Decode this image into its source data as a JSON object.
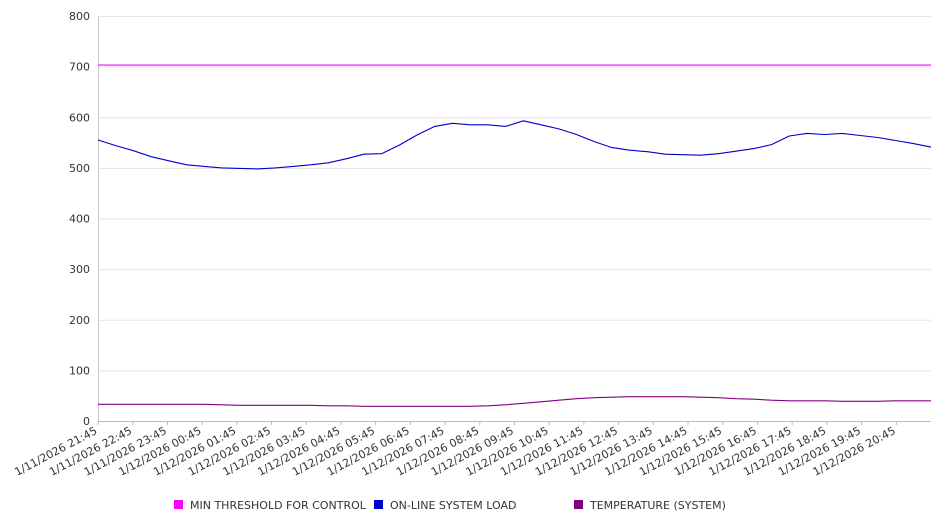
{
  "chart_data": {
    "type": "line",
    "title": "",
    "xlabel": "",
    "ylabel": "",
    "ylim": [
      0,
      800
    ],
    "y_ticks": [
      0,
      100,
      200,
      300,
      400,
      500,
      600,
      700,
      800
    ],
    "grid": true,
    "legend_position": "bottom",
    "x_tick_labels": [
      "1/11/2026 21:45",
      "1/11/2026 22:45",
      "1/11/2026 23:45",
      "1/12/2026 00:45",
      "1/12/2026 01:45",
      "1/12/2026 02:45",
      "1/12/2026 03:45",
      "1/12/2026 04:45",
      "1/12/2026 05:45",
      "1/12/2026 06:45",
      "1/12/2026 07:45",
      "1/12/2026 08:45",
      "1/12/2026 09:45",
      "1/12/2026 10:45",
      "1/12/2026 11:45",
      "1/12/2026 12:45",
      "1/12/2026 13:45",
      "1/12/2026 14:45",
      "1/12/2026 15:45",
      "1/12/2026 16:45",
      "1/12/2026 17:45",
      "1/12/2026 18:45",
      "1/12/2026 19:45",
      "1/12/2026 20:45"
    ],
    "x": [
      "1/11/2026 21:45",
      "1/11/2026 22:15",
      "1/11/2026 22:45",
      "1/11/2026 23:15",
      "1/11/2026 23:45",
      "1/12/2026 00:15",
      "1/12/2026 00:45",
      "1/12/2026 01:15",
      "1/12/2026 01:45",
      "1/12/2026 02:15",
      "1/12/2026 02:45",
      "1/12/2026 03:15",
      "1/12/2026 03:45",
      "1/12/2026 04:15",
      "1/12/2026 04:45",
      "1/12/2026 05:15",
      "1/12/2026 05:45",
      "1/12/2026 06:15",
      "1/12/2026 06:45",
      "1/12/2026 07:15",
      "1/12/2026 07:45",
      "1/12/2026 08:15",
      "1/12/2026 08:45",
      "1/12/2026 09:15",
      "1/12/2026 09:45",
      "1/12/2026 10:15",
      "1/12/2026 10:45",
      "1/12/2026 11:15",
      "1/12/2026 11:45",
      "1/12/2026 12:15",
      "1/12/2026 12:45",
      "1/12/2026 13:15",
      "1/12/2026 13:45",
      "1/12/2026 14:15",
      "1/12/2026 14:45",
      "1/12/2026 15:15",
      "1/12/2026 15:45",
      "1/12/2026 16:15",
      "1/12/2026 16:45",
      "1/12/2026 17:15",
      "1/12/2026 17:45",
      "1/12/2026 18:15",
      "1/12/2026 18:45",
      "1/12/2026 19:15",
      "1/12/2026 19:45",
      "1/12/2026 20:15",
      "1/12/2026 20:45",
      "1/12/2026 21:15"
    ],
    "series": [
      {
        "name": "MIN THRESHOLD FOR CONTROL",
        "color": "#ff00ff",
        "values": [
          703,
          703,
          703,
          703,
          703,
          703,
          703,
          703,
          703,
          703,
          703,
          703,
          703,
          703,
          703,
          703,
          703,
          703,
          703,
          703,
          703,
          703,
          703,
          703,
          703,
          703,
          703,
          703,
          703,
          703,
          703,
          703,
          703,
          703,
          703,
          703,
          703,
          703,
          703,
          703,
          703,
          703,
          703,
          703,
          703,
          703,
          703,
          703
        ]
      },
      {
        "name": "ON-LINE SYSTEM LOAD",
        "color": "#0000cc",
        "values": [
          555,
          544,
          534,
          522,
          514,
          506,
          503,
          500,
          499,
          498,
          500,
          503,
          506,
          510,
          518,
          527,
          528,
          545,
          565,
          582,
          588,
          585,
          585,
          582,
          593,
          585,
          577,
          566,
          552,
          540,
          535,
          532,
          527,
          526,
          525,
          528,
          533,
          538,
          546,
          563,
          568,
          566,
          568,
          564,
          560,
          554,
          548,
          541
        ]
      },
      {
        "name": "TEMPERATURE (SYSTEM)",
        "color": "#800080",
        "values": [
          33,
          33,
          33,
          33,
          33,
          33,
          33,
          32,
          31,
          31,
          31,
          31,
          31,
          30,
          30,
          29,
          29,
          29,
          29,
          29,
          29,
          29,
          30,
          32,
          35,
          38,
          41,
          44,
          46,
          47,
          48,
          48,
          48,
          48,
          47,
          46,
          44,
          43,
          41,
          40,
          40,
          40,
          39,
          39,
          39,
          40,
          40,
          40
        ]
      }
    ]
  }
}
